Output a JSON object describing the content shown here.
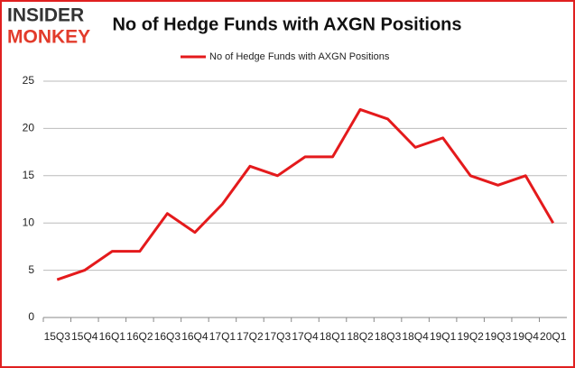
{
  "logo": {
    "top": "INSIDER",
    "bottom": "MONKEY"
  },
  "chart_data": {
    "type": "line",
    "title": "No of Hedge Funds with AXGN Positions",
    "categories": [
      "15Q3",
      "15Q4",
      "16Q1",
      "16Q2",
      "16Q3",
      "16Q4",
      "17Q1",
      "17Q2",
      "17Q3",
      "17Q4",
      "18Q1",
      "18Q2",
      "18Q3",
      "18Q4",
      "19Q1",
      "19Q2",
      "19Q3",
      "19Q4",
      "20Q1"
    ],
    "series": [
      {
        "name": "No of Hedge Funds with AXGN Positions",
        "color": "#e41a1c",
        "values": [
          4,
          5,
          7,
          7,
          11,
          9,
          12,
          16,
          15,
          17,
          17,
          22,
          21,
          18,
          19,
          15,
          14,
          15,
          10
        ]
      }
    ],
    "ylim": [
      0,
      25
    ],
    "yticks": [
      0,
      5,
      10,
      15,
      20,
      25
    ],
    "grid": true,
    "legend": "top"
  }
}
